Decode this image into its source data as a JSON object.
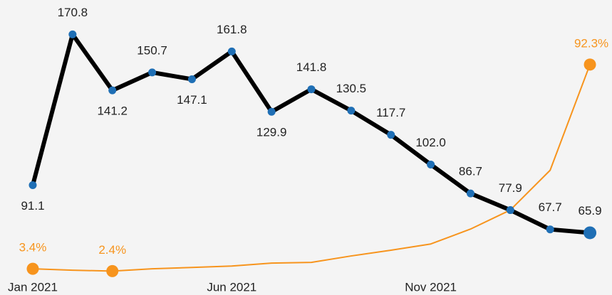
{
  "chart_data": {
    "type": "line",
    "categories": [
      "Jan 2021",
      null,
      null,
      null,
      null,
      "Jun 2021",
      null,
      null,
      null,
      null,
      "Nov 2021",
      null,
      null,
      null,
      null
    ],
    "series": [
      {
        "name": null,
        "color": "#000000",
        "values": [
          91.1,
          170.8,
          141.2,
          150.7,
          147.1,
          161.8,
          129.9,
          141.8,
          130.5,
          117.7,
          102.0,
          86.7,
          77.9,
          67.7,
          65.9
        ],
        "value_labels": [
          "91.1",
          "170.8",
          "141.2",
          "150.7",
          "147.1",
          "161.8",
          "129.9",
          "141.8",
          "130.5",
          "117.7",
          "102.0",
          "86.7",
          "77.9",
          "67.7",
          "65.9"
        ]
      },
      {
        "name": null,
        "color": "#f7941d",
        "axis": "y2",
        "values": [
          3.4,
          2.8,
          2.4,
          3.4,
          4.0,
          4.6,
          5.9,
          6.2,
          9.0,
          11.5,
          14.2,
          20.7,
          29.0,
          46.3,
          92.3
        ],
        "value_labels": [
          "3.4%",
          null,
          "2.4%",
          null,
          null,
          null,
          null,
          null,
          null,
          null,
          null,
          null,
          null,
          null,
          "92.3%"
        ]
      }
    ],
    "ylim": [
      33,
      189
    ],
    "y2lim": [
      -8,
      120.4
    ]
  }
}
